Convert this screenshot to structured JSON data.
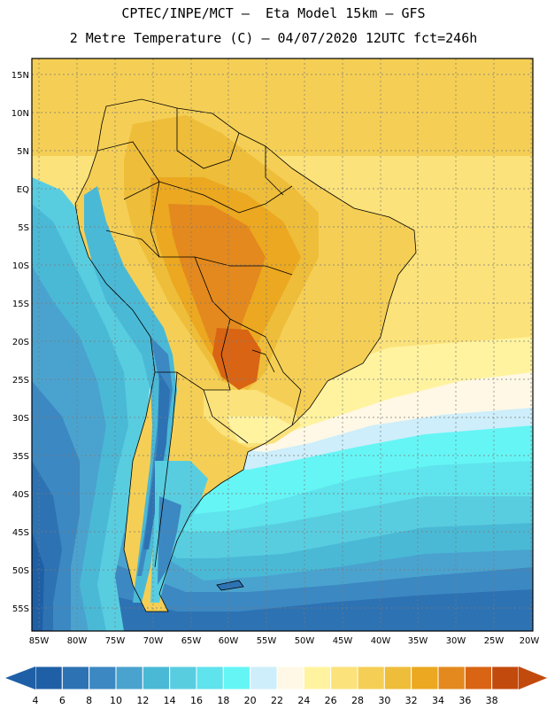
{
  "title": {
    "line1": "CPTEC/INPE/MCT –  Eta Model 15km – GFS",
    "line2": "2 Metre Temperature (C) – 04/07/2020 12UTC fct=246h"
  },
  "axes": {
    "lat_labels": [
      "15N",
      "10N",
      "5N",
      "EQ",
      "5S",
      "10S",
      "15S",
      "20S",
      "25S",
      "30S",
      "35S",
      "40S",
      "45S",
      "50S",
      "55S"
    ],
    "lon_labels": [
      "85W",
      "80W",
      "75W",
      "70W",
      "65W",
      "60W",
      "55W",
      "50W",
      "45W",
      "40W",
      "35W",
      "30W",
      "25W",
      "20W"
    ]
  },
  "legend": {
    "labels": [
      "4",
      "6",
      "8",
      "10",
      "12",
      "14",
      "16",
      "18",
      "20",
      "22",
      "24",
      "26",
      "28",
      "30",
      "32",
      "34",
      "36",
      "38"
    ],
    "colors": [
      "#1f5fa6",
      "#2d72b3",
      "#3c88c2",
      "#4aa3cf",
      "#4ab9d6",
      "#59cde0",
      "#5fe3ec",
      "#66f5f5",
      "#cdeefa",
      "#fff8e6",
      "#fff3a0",
      "#fbe27a",
      "#f5cf55",
      "#eebd3a",
      "#eba820",
      "#e3891e",
      "#d96414",
      "#c24a0c"
    ]
  }
}
